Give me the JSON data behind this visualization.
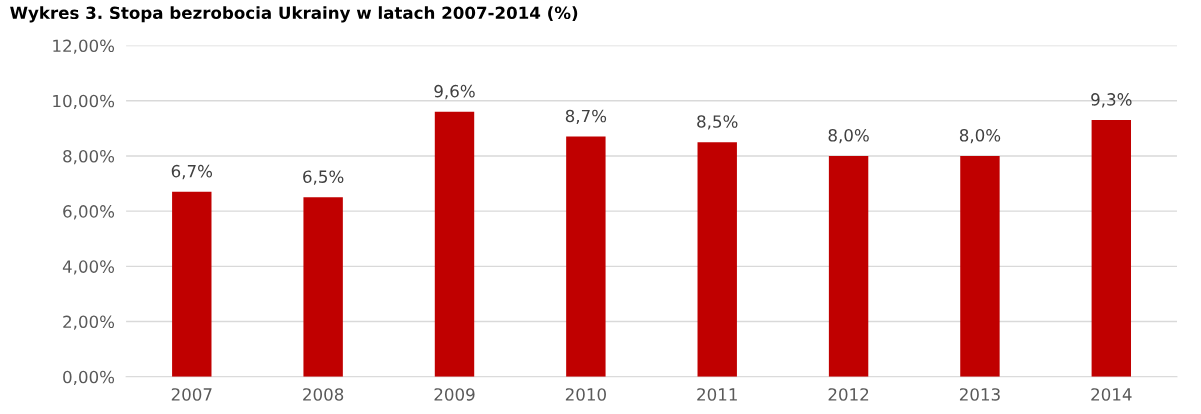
{
  "chart_data": {
    "type": "bar",
    "title": "Wykres 3. Stopa bezrobocia Ukrainy w latach 2007-2014 (%)",
    "categories": [
      "2007",
      "2008",
      "2009",
      "2010",
      "2011",
      "2012",
      "2013",
      "2014"
    ],
    "values": [
      6.7,
      6.5,
      9.6,
      8.7,
      8.5,
      8.0,
      8.0,
      9.3
    ],
    "value_labels": [
      "6,7%",
      "6,5%",
      "9,6%",
      "8,7%",
      "8,5%",
      "8,0%",
      "8,0%",
      "9,3%"
    ],
    "color": "#c00000",
    "ylim": [
      0,
      12
    ],
    "yticks": [
      {
        "value": 0,
        "label": "0,00%"
      },
      {
        "value": 2,
        "label": "2,00%"
      },
      {
        "value": 4,
        "label": "4,00%"
      },
      {
        "value": 6,
        "label": "6,00%"
      },
      {
        "value": 8,
        "label": "8,00%"
      },
      {
        "value": 10,
        "label": "10,00%"
      },
      {
        "value": 12,
        "label": "12,00%"
      }
    ],
    "grid": "y"
  }
}
